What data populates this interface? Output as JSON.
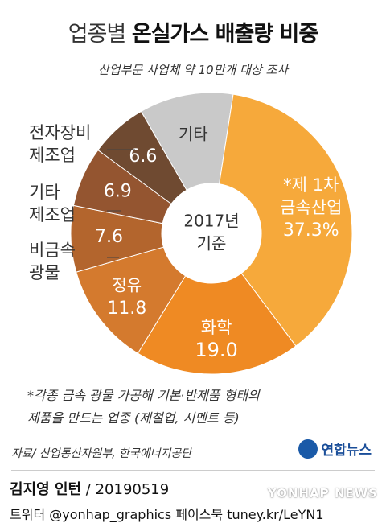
{
  "title": {
    "part1": "업종별",
    "part2": "온실가스 배출량 비중"
  },
  "subtitle": "산업부문 사업체 약 10만개 대상 조사",
  "center_label": {
    "line1": "2017년",
    "line2": "기준"
  },
  "outer_labels": {
    "electronics": [
      "전자장비",
      "제조업"
    ],
    "other_mfg": [
      "기타",
      "제조업"
    ],
    "nonmetal": [
      "비금속",
      "광물"
    ]
  },
  "chart_data": {
    "type": "pie",
    "variant": "donut",
    "slices": [
      {
        "name": "기타",
        "label_lines": [
          "기타"
        ],
        "value": null,
        "color": "#c9c9c9",
        "text_color": "#333333"
      },
      {
        "name": "제 1차 금속산업",
        "label_lines": [
          "*제 1차",
          "금속산업",
          "37.3%"
        ],
        "value": 37.3,
        "color": "#f6a93b",
        "text_color": "#ffffff"
      },
      {
        "name": "화학",
        "label_lines": [
          "화학",
          "19.0"
        ],
        "value": 19.0,
        "color": "#ef8a23",
        "text_color": "#ffffff"
      },
      {
        "name": "정유",
        "label_lines": [
          "정유",
          "11.8"
        ],
        "value": 11.8,
        "color": "#d47a2e",
        "text_color": "#ffffff"
      },
      {
        "name": "비금속 광물",
        "label_lines": [
          "7.6"
        ],
        "value": 7.6,
        "color": "#b3652d",
        "text_color": "#ffffff"
      },
      {
        "name": "기타 제조업",
        "label_lines": [
          "6.9"
        ],
        "value": 6.9,
        "color": "#945530",
        "text_color": "#ffffff"
      },
      {
        "name": "전자장비 제조업",
        "label_lines": [
          "6.6"
        ],
        "value": 6.6,
        "color": "#6f4a31",
        "text_color": "#ffffff"
      }
    ]
  },
  "footnote": [
    "*각종 금속 광물 가공해 기본·반제품 형태의",
    "제품을 만드는 업종 (제철업, 시멘트 등)"
  ],
  "source": "자료/ 산업통산자원부, 한국에너지공단",
  "logo": "연합뉴스",
  "credit": {
    "name": "김지영 인턴",
    "date": " / 20190519"
  },
  "handles": "트위터 @yonhap_graphics  페이스북 tuney.kr/LeYN1",
  "watermark": "YONHAP NEWS"
}
